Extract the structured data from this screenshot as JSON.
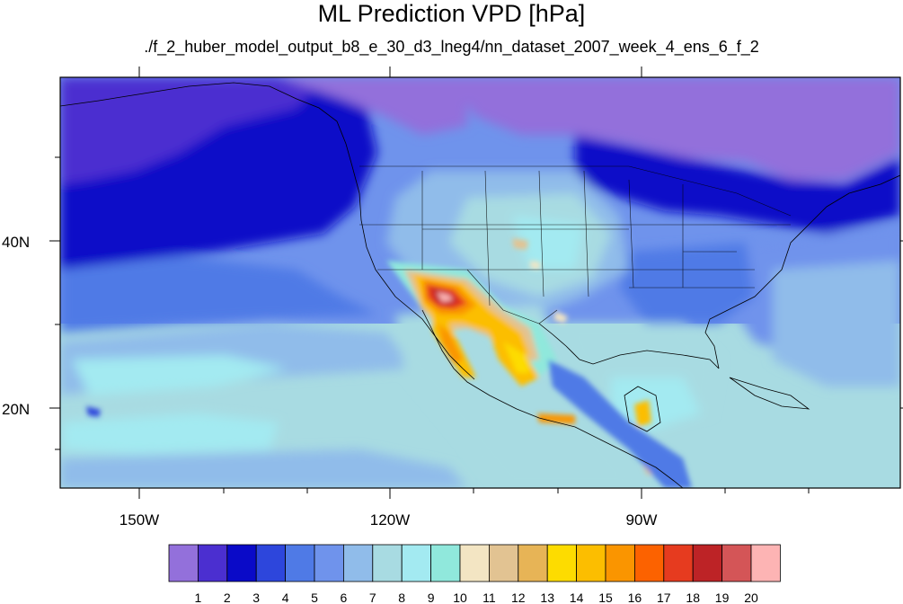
{
  "header": {
    "title": "ML Prediction VPD [hPa]",
    "subtitle": "./f_2_huber_model_output_b8_e_30_d3_lneg4/nn_dataset_2007_week_4_ens_6_f_2"
  },
  "axes": {
    "lat_labels": [
      "40N",
      "20N"
    ],
    "lon_labels": [
      "150W",
      "120W",
      "90W"
    ]
  },
  "colorbar": {
    "labels": [
      "1",
      "2",
      "3",
      "4",
      "5",
      "6",
      "7",
      "8",
      "9",
      "10",
      "11",
      "12",
      "13",
      "14",
      "15",
      "16",
      "17",
      "18",
      "19",
      "20"
    ],
    "colors": [
      "#9370db",
      "#4b2fd0",
      "#0a0ac8",
      "#2d46dc",
      "#4f7ae6",
      "#6f93ec",
      "#90bcea",
      "#a8dbe2",
      "#a3eaf1",
      "#90e8dc",
      "#f3e5c3",
      "#e2c392",
      "#e7b456",
      "#fddc00",
      "#fcbe00",
      "#fa9500",
      "#fc6200",
      "#e63b1f",
      "#bd2326",
      "#d45557",
      "#fdb4b4"
    ]
  },
  "chart_data": {
    "type": "heatmap",
    "title": "ML Prediction VPD [hPa]",
    "subtitle": "./f_2_huber_model_output_b8_e_30_d3_lneg4/nn_dataset_2007_week_4_ens_6_f_2",
    "lon_range": [
      -160,
      -60
    ],
    "lat_range": [
      10,
      59
    ],
    "x_ticks": [
      -150,
      -120,
      -90
    ],
    "y_ticks": [
      20,
      40
    ],
    "x_tick_labels": [
      "150W",
      "120W",
      "90W"
    ],
    "y_tick_labels": [
      "20N",
      "40N"
    ],
    "colorbar_levels": [
      1,
      2,
      3,
      4,
      5,
      6,
      7,
      8,
      9,
      10,
      11,
      12,
      13,
      14,
      15,
      16,
      17,
      18,
      19,
      20
    ]
  }
}
